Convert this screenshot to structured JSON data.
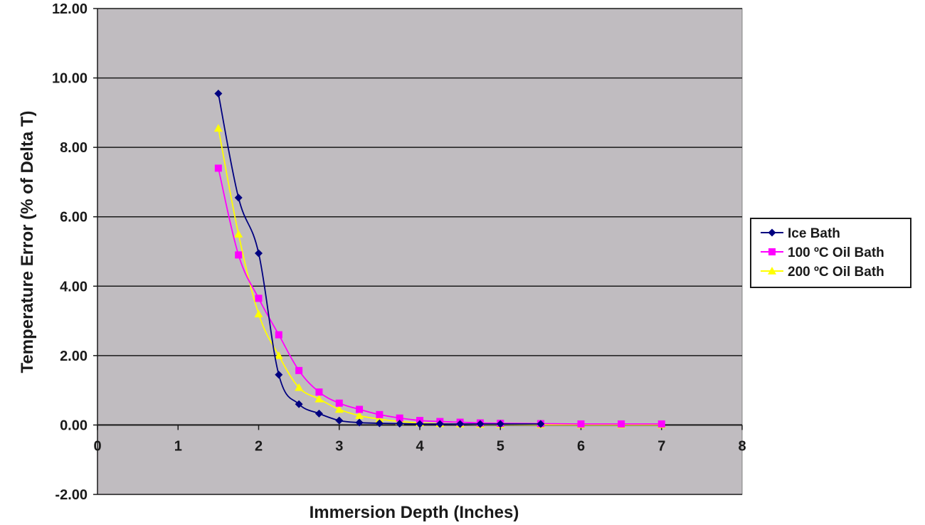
{
  "chart_data": {
    "type": "line",
    "title": "",
    "xlabel": "Immersion Depth (Inches)",
    "ylabel": "Temperature Error (% of Delta T)",
    "xlim": [
      0,
      8
    ],
    "ylim": [
      -2,
      12
    ],
    "x_ticks": [
      "0",
      "1",
      "2",
      "3",
      "4",
      "5",
      "6",
      "7",
      "8"
    ],
    "y_ticks": [
      "-2.00",
      "0.00",
      "2.00",
      "4.00",
      "6.00",
      "8.00",
      "10.00",
      "12.00"
    ],
    "grid": "horizontal",
    "plot_background": "#c0bcc0",
    "legend_position": "right",
    "series": [
      {
        "name": "Ice Bath",
        "color": "#000080",
        "marker": "diamond",
        "x": [
          1.5,
          1.75,
          2,
          2.25,
          2.5,
          2.75,
          3,
          3.25,
          3.5,
          3.75,
          4,
          4.25,
          4.5,
          4.75,
          5,
          5.5
        ],
        "y": [
          9.55,
          6.55,
          4.95,
          1.45,
          0.6,
          0.33,
          0.13,
          0.07,
          0.05,
          0.04,
          0.03,
          0.03,
          0.03,
          0.03,
          0.03,
          0.03
        ]
      },
      {
        "name": "100 ºC Oil Bath",
        "color": "#ff00ff",
        "marker": "square",
        "x": [
          1.5,
          1.75,
          2,
          2.25,
          2.5,
          2.75,
          3,
          3.25,
          3.5,
          3.75,
          4,
          4.25,
          4.5,
          4.75,
          5,
          5.5,
          6,
          6.5,
          7
        ],
        "y": [
          7.4,
          4.9,
          3.65,
          2.6,
          1.57,
          0.95,
          0.63,
          0.45,
          0.3,
          0.2,
          0.13,
          0.1,
          0.08,
          0.06,
          0.05,
          0.04,
          0.03,
          0.03,
          0.03
        ]
      },
      {
        "name": "200 ºC Oil Bath",
        "color": "#ffff00",
        "marker": "triangle",
        "x": [
          1.5,
          1.75,
          2,
          2.25,
          2.5,
          2.75,
          3,
          3.25,
          3.5,
          3.75,
          4,
          4.25,
          4.5,
          4.75,
          5,
          5.5,
          6,
          6.5,
          7
        ],
        "y": [
          8.55,
          5.5,
          3.2,
          2.0,
          1.08,
          0.75,
          0.45,
          0.27,
          0.17,
          0.1,
          0.06,
          0.04,
          0.03,
          0.02,
          0.02,
          0.01,
          0.01,
          0.01,
          0.01
        ]
      }
    ]
  }
}
